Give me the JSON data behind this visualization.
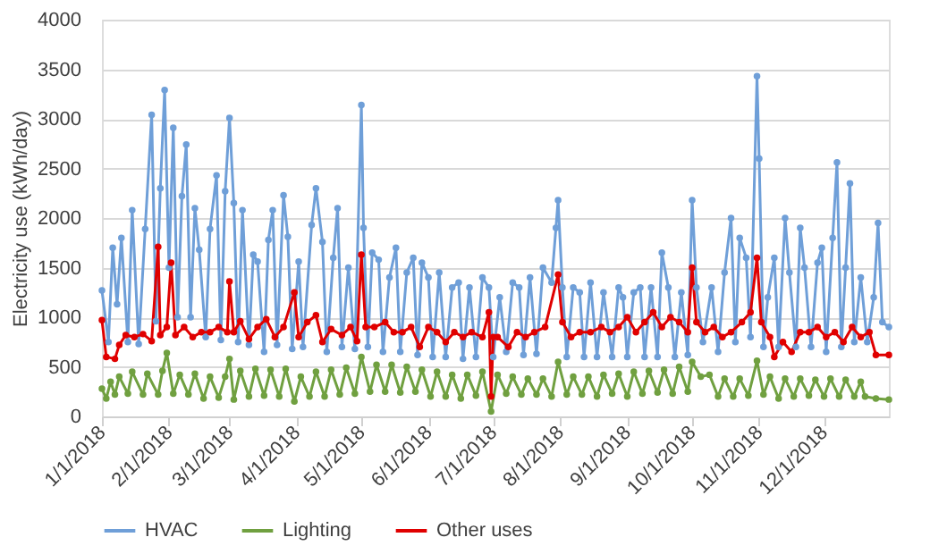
{
  "chart_data": {
    "type": "line",
    "ylabel": "Electricity use (kWh/day)",
    "ylim": [
      0,
      4000
    ],
    "yticks": [
      0,
      500,
      1000,
      1500,
      2000,
      2500,
      3000,
      3500,
      4000
    ],
    "xlim": [
      "2018-01-01",
      "2018-12-31"
    ],
    "xticks": [
      {
        "value": "2018-01-01",
        "label": "1/1/2018"
      },
      {
        "value": "2018-02-01",
        "label": "2/1/2018"
      },
      {
        "value": "2018-03-01",
        "label": "3/1/2018"
      },
      {
        "value": "2018-04-01",
        "label": "4/1/2018"
      },
      {
        "value": "2018-05-01",
        "label": "5/1/2018"
      },
      {
        "value": "2018-06-01",
        "label": "6/1/2018"
      },
      {
        "value": "2018-07-01",
        "label": "7/1/2018"
      },
      {
        "value": "2018-08-01",
        "label": "8/1/2018"
      },
      {
        "value": "2018-09-01",
        "label": "9/1/2018"
      },
      {
        "value": "2018-10-01",
        "label": "10/1/2018"
      },
      {
        "value": "2018-11-01",
        "label": "11/1/2018"
      },
      {
        "value": "2018-12-01",
        "label": "12/1/2018"
      }
    ],
    "grid": "y",
    "legend": "bottom",
    "marker": "circle",
    "line_style": "solid",
    "series": [
      {
        "name": "HVAC",
        "color": "#6f9fd8",
        "x": [
          "2018-01-01",
          "2018-01-04",
          "2018-01-06",
          "2018-01-08",
          "2018-01-10",
          "2018-01-13",
          "2018-01-15",
          "2018-01-18",
          "2018-01-21",
          "2018-01-24",
          "2018-01-26",
          "2018-01-28",
          "2018-01-30",
          "2018-02-01",
          "2018-02-03",
          "2018-02-05",
          "2018-02-07",
          "2018-02-09",
          "2018-02-11",
          "2018-02-13",
          "2018-02-15",
          "2018-02-18",
          "2018-02-20",
          "2018-02-23",
          "2018-02-25",
          "2018-02-27",
          "2018-03-01",
          "2018-03-03",
          "2018-03-05",
          "2018-03-07",
          "2018-03-10",
          "2018-03-12",
          "2018-03-14",
          "2018-03-17",
          "2018-03-19",
          "2018-03-21",
          "2018-03-23",
          "2018-03-26",
          "2018-03-28",
          "2018-03-30",
          "2018-04-02",
          "2018-04-04",
          "2018-04-08",
          "2018-04-10",
          "2018-04-13",
          "2018-04-15",
          "2018-04-18",
          "2018-04-20",
          "2018-04-22",
          "2018-04-25",
          "2018-04-28",
          "2018-05-01",
          "2018-05-02",
          "2018-05-04",
          "2018-05-06",
          "2018-05-09",
          "2018-05-11",
          "2018-05-14",
          "2018-05-17",
          "2018-05-19",
          "2018-05-22",
          "2018-05-25",
          "2018-05-27",
          "2018-05-29",
          "2018-06-01",
          "2018-06-03",
          "2018-06-06",
          "2018-06-09",
          "2018-06-12",
          "2018-06-15",
          "2018-06-17",
          "2018-06-20",
          "2018-06-23",
          "2018-06-26",
          "2018-06-29",
          "2018-07-01",
          "2018-07-04",
          "2018-07-07",
          "2018-07-10",
          "2018-07-13",
          "2018-07-15",
          "2018-07-18",
          "2018-07-21",
          "2018-07-24",
          "2018-07-28",
          "2018-07-30",
          "2018-07-31",
          "2018-08-02",
          "2018-08-04",
          "2018-08-07",
          "2018-08-10",
          "2018-08-12",
          "2018-08-15",
          "2018-08-18",
          "2018-08-21",
          "2018-08-25",
          "2018-08-28",
          "2018-08-30",
          "2018-09-01",
          "2018-09-04",
          "2018-09-07",
          "2018-09-09",
          "2018-09-12",
          "2018-09-15",
          "2018-09-17",
          "2018-09-20",
          "2018-09-23",
          "2018-09-26",
          "2018-09-29",
          "2018-10-01",
          "2018-10-03",
          "2018-10-06",
          "2018-10-10",
          "2018-10-13",
          "2018-10-16",
          "2018-10-19",
          "2018-10-21",
          "2018-10-23",
          "2018-10-26",
          "2018-10-28",
          "2018-10-31",
          "2018-11-01",
          "2018-11-03",
          "2018-11-05",
          "2018-11-08",
          "2018-11-10",
          "2018-11-13",
          "2018-11-15",
          "2018-11-18",
          "2018-11-20",
          "2018-11-22",
          "2018-11-25",
          "2018-11-28",
          "2018-11-30",
          "2018-12-02",
          "2018-12-05",
          "2018-12-07",
          "2018-12-09",
          "2018-12-11",
          "2018-12-13",
          "2018-12-15",
          "2018-12-18",
          "2018-12-21",
          "2018-12-24",
          "2018-12-26",
          "2018-12-28",
          "2018-12-31"
        ],
        "values": [
          1270,
          750,
          1700,
          1130,
          1800,
          750,
          2080,
          730,
          1890,
          3040,
          960,
          2300,
          3290,
          1500,
          2910,
          1000,
          2220,
          2740,
          1000,
          2100,
          1680,
          800,
          1890,
          2430,
          770,
          2270,
          3010,
          2150,
          750,
          2080,
          720,
          1630,
          1560,
          650,
          1780,
          2080,
          720,
          2230,
          1810,
          680,
          1560,
          700,
          1930,
          2300,
          1760,
          650,
          1600,
          2100,
          700,
          1500,
          680,
          3140,
          1900,
          700,
          1650,
          1580,
          650,
          1400,
          1700,
          650,
          1450,
          1600,
          620,
          1550,
          1400,
          600,
          1450,
          600,
          1300,
          1350,
          580,
          1300,
          600,
          1400,
          1300,
          600,
          1200,
          650,
          1350,
          1300,
          620,
          1400,
          630,
          1500,
          1350,
          1900,
          2180,
          1300,
          600,
          1300,
          1250,
          600,
          1350,
          600,
          1250,
          600,
          1300,
          1200,
          600,
          1250,
          1300,
          600,
          1300,
          600,
          1650,
          1300,
          600,
          1250,
          620,
          2180,
          1300,
          750,
          1300,
          650,
          1450,
          2000,
          750,
          1800,
          1600,
          800,
          3430,
          2600,
          700,
          1200,
          1600,
          700,
          2000,
          1450,
          700,
          1900,
          1500,
          700,
          1550,
          1700,
          650,
          1800,
          2560,
          700,
          1500,
          2350,
          750,
          1400,
          750,
          1200,
          1950,
          950,
          900
        ]
      },
      {
        "name": "Lighting",
        "color": "#70a040",
        "x": [
          "2018-01-01",
          "2018-01-03",
          "2018-01-05",
          "2018-01-07",
          "2018-01-09",
          "2018-01-13",
          "2018-01-15",
          "2018-01-20",
          "2018-01-22",
          "2018-01-27",
          "2018-01-29",
          "2018-01-31",
          "2018-02-03",
          "2018-02-06",
          "2018-02-10",
          "2018-02-13",
          "2018-02-17",
          "2018-02-20",
          "2018-02-24",
          "2018-02-27",
          "2018-03-01",
          "2018-03-03",
          "2018-03-06",
          "2018-03-10",
          "2018-03-13",
          "2018-03-17",
          "2018-03-20",
          "2018-03-24",
          "2018-03-27",
          "2018-03-31",
          "2018-04-03",
          "2018-04-07",
          "2018-04-10",
          "2018-04-14",
          "2018-04-17",
          "2018-04-21",
          "2018-04-24",
          "2018-04-28",
          "2018-05-01",
          "2018-05-05",
          "2018-05-08",
          "2018-05-12",
          "2018-05-15",
          "2018-05-19",
          "2018-05-22",
          "2018-05-26",
          "2018-05-29",
          "2018-06-02",
          "2018-06-05",
          "2018-06-09",
          "2018-06-12",
          "2018-06-16",
          "2018-06-19",
          "2018-06-23",
          "2018-06-26",
          "2018-06-30",
          "2018-07-03",
          "2018-07-07",
          "2018-07-10",
          "2018-07-14",
          "2018-07-17",
          "2018-07-21",
          "2018-07-24",
          "2018-07-28",
          "2018-07-31",
          "2018-08-04",
          "2018-08-07",
          "2018-08-11",
          "2018-08-14",
          "2018-08-18",
          "2018-08-21",
          "2018-08-25",
          "2018-08-28",
          "2018-09-01",
          "2018-09-04",
          "2018-09-08",
          "2018-09-11",
          "2018-09-15",
          "2018-09-18",
          "2018-09-22",
          "2018-09-25",
          "2018-09-29",
          "2018-10-01",
          "2018-10-05",
          "2018-10-09",
          "2018-10-13",
          "2018-10-16",
          "2018-10-20",
          "2018-10-23",
          "2018-10-27",
          "2018-10-31",
          "2018-11-03",
          "2018-11-06",
          "2018-11-10",
          "2018-11-13",
          "2018-11-17",
          "2018-11-20",
          "2018-11-24",
          "2018-11-27",
          "2018-12-01",
          "2018-12-04",
          "2018-12-08",
          "2018-12-11",
          "2018-12-15",
          "2018-12-18",
          "2018-12-20",
          "2018-12-25",
          "2018-12-31"
        ],
        "values": [
          280,
          180,
          350,
          220,
          400,
          230,
          450,
          220,
          430,
          220,
          460,
          640,
          230,
          420,
          220,
          430,
          180,
          400,
          190,
          400,
          580,
          170,
          460,
          200,
          480,
          210,
          470,
          200,
          480,
          150,
          400,
          200,
          450,
          200,
          470,
          220,
          490,
          230,
          600,
          250,
          520,
          250,
          520,
          240,
          500,
          250,
          470,
          200,
          450,
          200,
          420,
          180,
          420,
          210,
          450,
          50,
          420,
          230,
          400,
          220,
          380,
          220,
          380,
          200,
          550,
          220,
          400,
          220,
          400,
          200,
          420,
          230,
          430,
          200,
          450,
          230,
          460,
          240,
          470,
          230,
          500,
          250,
          550,
          400,
          420,
          200,
          380,
          200,
          380,
          210,
          560,
          220,
          400,
          180,
          380,
          200,
          380,
          210,
          370,
          200,
          380,
          200,
          370,
          200,
          350,
          200,
          180,
          170
        ]
      },
      {
        "name": "Other uses",
        "color": "#e00000",
        "x": [
          "2018-01-01",
          "2018-01-03",
          "2018-01-07",
          "2018-01-09",
          "2018-01-12",
          "2018-01-16",
          "2018-01-20",
          "2018-01-24",
          "2018-01-27",
          "2018-01-28",
          "2018-01-31",
          "2018-02-02",
          "2018-02-04",
          "2018-02-08",
          "2018-02-12",
          "2018-02-16",
          "2018-02-20",
          "2018-02-24",
          "2018-02-28",
          "2018-03-01",
          "2018-03-03",
          "2018-03-06",
          "2018-03-10",
          "2018-03-14",
          "2018-03-18",
          "2018-03-22",
          "2018-03-26",
          "2018-03-31",
          "2018-04-02",
          "2018-04-06",
          "2018-04-10",
          "2018-04-13",
          "2018-04-17",
          "2018-04-22",
          "2018-04-26",
          "2018-04-29",
          "2018-05-01",
          "2018-05-03",
          "2018-05-07",
          "2018-05-12",
          "2018-05-16",
          "2018-05-20",
          "2018-05-24",
          "2018-05-28",
          "2018-06-01",
          "2018-06-05",
          "2018-06-09",
          "2018-06-13",
          "2018-06-17",
          "2018-06-21",
          "2018-06-26",
          "2018-06-29",
          "2018-06-30",
          "2018-07-01",
          "2018-07-03",
          "2018-07-08",
          "2018-07-12",
          "2018-07-16",
          "2018-07-20",
          "2018-07-25",
          "2018-07-31",
          "2018-08-02",
          "2018-08-06",
          "2018-08-10",
          "2018-08-15",
          "2018-08-20",
          "2018-08-24",
          "2018-08-28",
          "2018-09-01",
          "2018-09-05",
          "2018-09-09",
          "2018-09-13",
          "2018-09-17",
          "2018-09-21",
          "2018-09-25",
          "2018-09-29",
          "2018-10-01",
          "2018-10-03",
          "2018-10-07",
          "2018-10-11",
          "2018-10-15",
          "2018-10-19",
          "2018-10-24",
          "2018-10-28",
          "2018-10-31",
          "2018-11-02",
          "2018-11-06",
          "2018-11-08",
          "2018-11-12",
          "2018-11-16",
          "2018-11-20",
          "2018-11-24",
          "2018-11-28",
          "2018-12-02",
          "2018-12-06",
          "2018-12-10",
          "2018-12-14",
          "2018-12-18",
          "2018-12-22",
          "2018-12-25",
          "2018-12-31"
        ],
        "values": [
          970,
          600,
          580,
          720,
          820,
          800,
          830,
          760,
          1710,
          820,
          900,
          1550,
          820,
          900,
          800,
          850,
          850,
          900,
          850,
          1360,
          850,
          960,
          780,
          900,
          980,
          800,
          900,
          1250,
          800,
          950,
          1020,
          750,
          880,
          820,
          900,
          760,
          1630,
          900,
          900,
          950,
          850,
          850,
          900,
          700,
          900,
          850,
          750,
          850,
          800,
          850,
          800,
          1050,
          200,
          800,
          800,
          700,
          850,
          800,
          850,
          900,
          1430,
          950,
          800,
          850,
          850,
          900,
          850,
          900,
          1000,
          850,
          950,
          1050,
          900,
          1000,
          950,
          850,
          1500,
          950,
          850,
          900,
          800,
          850,
          950,
          1050,
          1600,
          950,
          800,
          600,
          750,
          650,
          850,
          850,
          900,
          800,
          850,
          750,
          900,
          800,
          850,
          620,
          620
        ]
      }
    ]
  }
}
